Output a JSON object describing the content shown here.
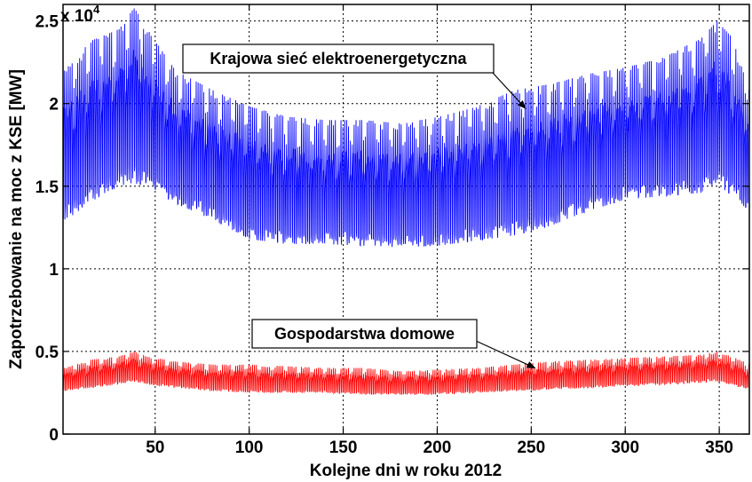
{
  "chart_data": {
    "type": "line",
    "title": "",
    "xlabel": "Kolejne dni w roku 2012",
    "ylabel": "Zapotrzebowanie na moc z KSE [MW]",
    "y_multiplier": "x 10",
    "y_multiplier_exponent": "4",
    "xlim": [
      1,
      366
    ],
    "ylim": [
      0,
      2.6
    ],
    "x_ticks": [
      50,
      100,
      150,
      200,
      250,
      300,
      350
    ],
    "x_tick_labels": [
      "50",
      "100",
      "150",
      "200",
      "250",
      "300",
      "350"
    ],
    "y_ticks": [
      0,
      0.5,
      1,
      1.5,
      2,
      2.5
    ],
    "y_tick_labels": [
      "0",
      "0.5",
      "1",
      "1.5",
      "2",
      "2.5"
    ],
    "grid": true,
    "legend": "none",
    "series": [
      {
        "color": "#0000ff",
        "points": "x = day of year; each day's load oscillates between the daily min and max below (×10^4 MW)",
        "x": [
          1,
          15,
          30,
          38,
          45,
          60,
          80,
          100,
          120,
          140,
          160,
          180,
          200,
          220,
          240,
          260,
          280,
          300,
          320,
          340,
          348,
          356,
          366
        ],
        "min": [
          1.28,
          1.4,
          1.5,
          1.52,
          1.5,
          1.4,
          1.3,
          1.18,
          1.15,
          1.15,
          1.14,
          1.13,
          1.14,
          1.17,
          1.2,
          1.26,
          1.35,
          1.42,
          1.44,
          1.46,
          1.52,
          1.45,
          1.35
        ],
        "max": [
          2.2,
          2.38,
          2.45,
          2.58,
          2.45,
          2.2,
          2.08,
          1.98,
          1.92,
          1.9,
          1.9,
          1.88,
          1.92,
          1.98,
          2.08,
          2.12,
          2.18,
          2.22,
          2.28,
          2.4,
          2.5,
          2.4,
          2.05
        ]
      },
      {
        "color": "#ff0000",
        "x": [
          1,
          15,
          30,
          38,
          45,
          60,
          80,
          100,
          120,
          140,
          160,
          180,
          200,
          220,
          240,
          260,
          280,
          300,
          320,
          340,
          348,
          356,
          366
        ],
        "min": [
          0.26,
          0.28,
          0.3,
          0.32,
          0.3,
          0.28,
          0.26,
          0.25,
          0.25,
          0.25,
          0.24,
          0.24,
          0.24,
          0.25,
          0.26,
          0.27,
          0.28,
          0.29,
          0.3,
          0.31,
          0.32,
          0.3,
          0.27
        ],
        "max": [
          0.4,
          0.45,
          0.47,
          0.5,
          0.47,
          0.44,
          0.42,
          0.42,
          0.41,
          0.4,
          0.4,
          0.38,
          0.39,
          0.4,
          0.42,
          0.44,
          0.45,
          0.46,
          0.47,
          0.48,
          0.5,
          0.47,
          0.42
        ]
      }
    ],
    "annotations": [
      {
        "text": "Krajowa sieć elektroenergetyczna",
        "arrow_to": [
          247,
          1.97
        ]
      },
      {
        "text": "Gospodarstwa domowe",
        "arrow_to": [
          252,
          0.4
        ]
      }
    ]
  }
}
